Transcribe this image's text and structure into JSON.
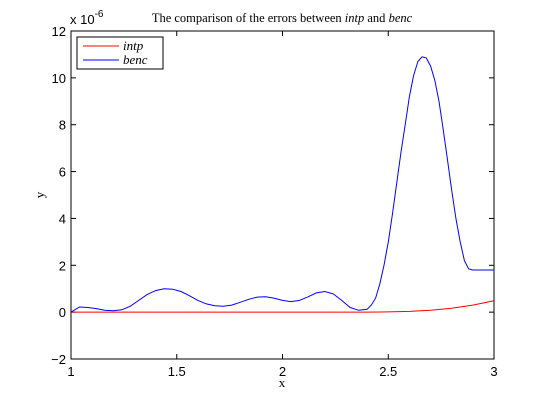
{
  "chart_data": {
    "type": "line",
    "title_parts": [
      "The comparison of the errors between ",
      "intp",
      " and ",
      "benc"
    ],
    "xlabel": "x",
    "ylabel": "y",
    "exponent_base": "x 10",
    "exponent_power": "-6",
    "xlim": [
      1,
      3
    ],
    "ylim": [
      -2,
      12
    ],
    "x_ticks": [
      1,
      1.5,
      2,
      2.5,
      3
    ],
    "x_tick_labels": [
      "1",
      "1.5",
      "2",
      "2.5",
      "3"
    ],
    "y_ticks": [
      -2,
      0,
      2,
      4,
      6,
      8,
      10,
      12
    ],
    "y_tick_labels": [
      "−2",
      "0",
      "2",
      "4",
      "6",
      "8",
      "10",
      "12"
    ],
    "legend_position": "top-left",
    "grid": false,
    "series": [
      {
        "name": "intp",
        "color": "#ff0000",
        "x": [
          1.0,
          1.2,
          1.4,
          1.6,
          1.8,
          2.0,
          2.2,
          2.4,
          2.5,
          2.6,
          2.7,
          2.8,
          2.9,
          3.0
        ],
        "y": [
          0.0,
          0.0,
          0.0,
          0.0,
          0.0,
          0.0,
          0.0,
          0.0,
          0.01,
          0.03,
          0.08,
          0.17,
          0.3,
          0.49
        ]
      },
      {
        "name": "benc",
        "color": "#0000ff",
        "x": [
          1.0,
          1.04,
          1.08,
          1.12,
          1.16,
          1.2,
          1.24,
          1.28,
          1.32,
          1.36,
          1.4,
          1.44,
          1.48,
          1.52,
          1.56,
          1.6,
          1.64,
          1.68,
          1.72,
          1.76,
          1.8,
          1.84,
          1.88,
          1.92,
          1.96,
          2.0,
          2.04,
          2.08,
          2.12,
          2.16,
          2.2,
          2.24,
          2.28,
          2.32,
          2.36,
          2.4,
          2.42,
          2.44,
          2.46,
          2.48,
          2.5,
          2.52,
          2.54,
          2.56,
          2.58,
          2.6,
          2.62,
          2.64,
          2.66,
          2.68,
          2.7,
          2.72,
          2.74,
          2.76,
          2.78,
          2.8,
          2.82,
          2.84,
          2.86,
          2.88,
          2.9,
          2.92,
          2.94,
          2.96,
          2.98,
          3.0
        ],
        "y": [
          0.0,
          0.22,
          0.2,
          0.15,
          0.08,
          0.06,
          0.1,
          0.25,
          0.5,
          0.75,
          0.92,
          1.0,
          0.98,
          0.88,
          0.7,
          0.5,
          0.35,
          0.27,
          0.25,
          0.3,
          0.42,
          0.55,
          0.64,
          0.66,
          0.6,
          0.5,
          0.45,
          0.5,
          0.65,
          0.82,
          0.88,
          0.78,
          0.5,
          0.2,
          0.08,
          0.12,
          0.3,
          0.6,
          1.2,
          2.0,
          3.0,
          4.2,
          5.5,
          6.8,
          8.0,
          9.2,
          10.1,
          10.7,
          10.9,
          10.85,
          10.5,
          9.9,
          9.0,
          7.8,
          6.5,
          5.2,
          4.0,
          3.0,
          2.2,
          1.85,
          1.8,
          1.8,
          1.8,
          1.8,
          1.8,
          1.8
        ]
      }
    ]
  }
}
